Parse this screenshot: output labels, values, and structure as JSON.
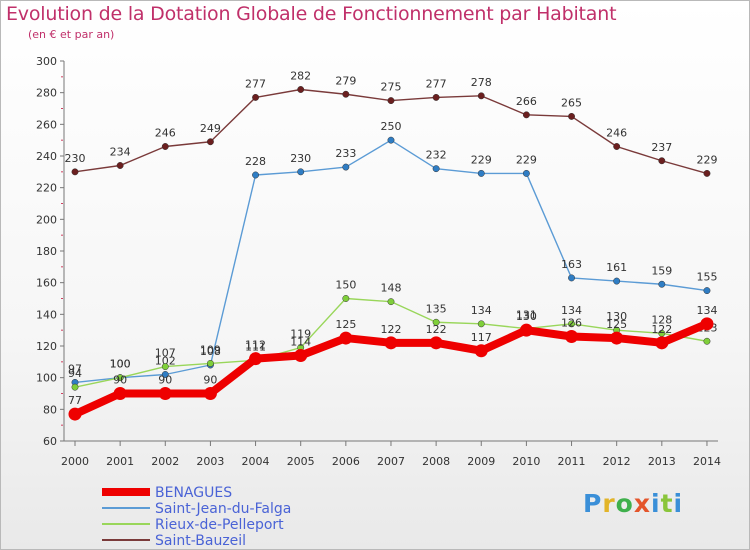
{
  "header": {
    "title": "Evolution de la Dotation Globale de Fonctionnement par Habitant",
    "subtitle": "(en € et par an)"
  },
  "logo": {
    "text": "Proxiti",
    "letters": [
      "P",
      "r",
      "o",
      "x",
      "i",
      "t",
      "i"
    ]
  },
  "chart_data": {
    "type": "line",
    "title": "Evolution de la Dotation Globale de Fonctionnement par Habitant",
    "subtitle": "(en € et par an)",
    "xlabel": "",
    "ylabel": "",
    "ylim": [
      60,
      300
    ],
    "yticks": [
      60,
      80,
      100,
      120,
      140,
      160,
      180,
      200,
      220,
      240,
      260,
      280,
      300
    ],
    "categories": [
      "2000",
      "2001",
      "2002",
      "2003",
      "2004",
      "2005",
      "2006",
      "2007",
      "2008",
      "2009",
      "2010",
      "2011",
      "2012",
      "2013",
      "2014"
    ],
    "grid": false,
    "legend_position": "bottom-left",
    "series": [
      {
        "name": "Saint-Bauzeil",
        "line_color": "#7a3a3a",
        "marker_color": "#6b1f1f",
        "stroke_width": 1.4,
        "values": [
          230,
          234,
          246,
          249,
          277,
          282,
          279,
          275,
          277,
          278,
          266,
          265,
          246,
          237,
          229
        ],
        "labels": [
          "230",
          "234",
          "246",
          "249",
          "277",
          "282",
          "279",
          "275",
          "277",
          "278",
          "266",
          "265",
          "246",
          "237",
          "229"
        ]
      },
      {
        "name": "Saint-Jean-du-Falga",
        "line_color": "#5b9bd5",
        "marker_color": "#2f7dc4",
        "stroke_width": 1.4,
        "values": [
          97,
          100,
          102,
          108,
          228,
          230,
          233,
          250,
          232,
          229,
          229,
          163,
          161,
          159,
          155
        ],
        "labels": [
          "97",
          "100",
          "102",
          "108",
          "228",
          "230",
          "233",
          "250",
          "232",
          "229",
          "229",
          "163",
          "161",
          "159",
          "155"
        ]
      },
      {
        "name": "Rieux-de-Pelleport",
        "line_color": "#99d65a",
        "marker_color": "#7fcf3a",
        "stroke_width": 1.4,
        "values": [
          94,
          100,
          107,
          109,
          111,
          119,
          150,
          148,
          135,
          134,
          131,
          134,
          130,
          128,
          123
        ],
        "labels": [
          "94",
          "100",
          "107",
          "109",
          "111",
          "119",
          "150",
          "148",
          "135",
          "134",
          "131",
          "134",
          "130",
          "128",
          "123"
        ]
      },
      {
        "name": "BENAGUES",
        "line_color": "#ee0000",
        "marker_color": "#ee0000",
        "stroke_width": 8,
        "values": [
          77,
          90,
          90,
          90,
          112,
          114,
          125,
          122,
          122,
          117,
          130,
          126,
          125,
          122,
          134
        ],
        "labels": [
          "77",
          "90",
          "90",
          "90",
          "112",
          "114",
          "125",
          "122",
          "122",
          "117",
          "130",
          "126",
          "125",
          "122",
          "134"
        ]
      }
    ],
    "legend": [
      {
        "name": "BENAGUES",
        "color": "#ee0000",
        "thick": true
      },
      {
        "name": "Saint-Jean-du-Falga",
        "color": "#5b9bd5",
        "thick": false
      },
      {
        "name": "Rieux-de-Pelleport",
        "color": "#99d65a",
        "thick": false
      },
      {
        "name": "Saint-Bauzeil",
        "color": "#7a3a3a",
        "thick": false
      }
    ]
  }
}
